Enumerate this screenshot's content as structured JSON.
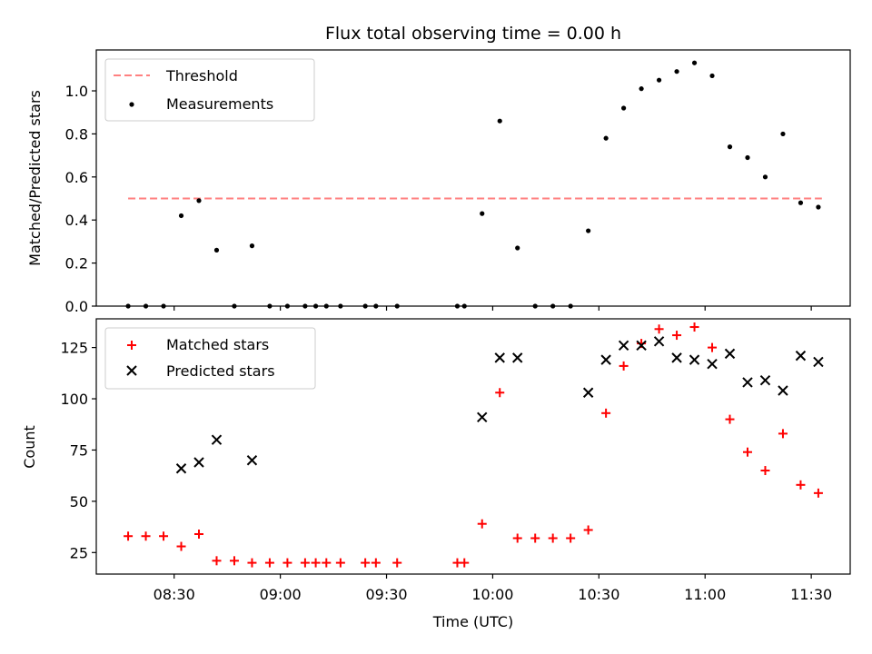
{
  "chart_data": [
    {
      "type": "scatter",
      "title": "Flux total observing time = 0.00 h",
      "xlabel": "",
      "ylabel": "Matched/Predicted stars",
      "ylim": [
        0,
        1.19
      ],
      "yticks": [
        0.0,
        0.2,
        0.4,
        0.6,
        0.8,
        1.0
      ],
      "xlim": [
        "08:08",
        "11:41"
      ],
      "legend_position": "top-left",
      "threshold": {
        "name": "Threshold",
        "value": 0.5,
        "x_start": "08:17",
        "x_end": "11:33",
        "color": "#ff8080"
      },
      "series": [
        {
          "name": "Measurements",
          "color": "#000000",
          "marker": "dot",
          "x": [
            "08:17",
            "08:22",
            "08:27",
            "08:32",
            "08:37",
            "08:42",
            "08:47",
            "08:52",
            "08:57",
            "09:02",
            "09:07",
            "09:10",
            "09:13",
            "09:17",
            "09:24",
            "09:27",
            "09:33",
            "09:50",
            "09:52",
            "09:57",
            "10:02",
            "10:07",
            "10:12",
            "10:17",
            "10:22",
            "10:27",
            "10:32",
            "10:37",
            "10:42",
            "10:47",
            "10:52",
            "10:57",
            "11:02",
            "11:07",
            "11:12",
            "11:17",
            "11:22",
            "11:27",
            "11:32"
          ],
          "y": [
            0.0,
            0.0,
            0.0,
            0.42,
            0.49,
            0.26,
            0.0,
            0.28,
            0.0,
            0.0,
            0.0,
            0.0,
            0.0,
            0.0,
            0.0,
            0.0,
            0.0,
            0.0,
            0.0,
            0.43,
            0.86,
            0.27,
            0.0,
            0.0,
            0.0,
            0.35,
            0.78,
            0.92,
            1.01,
            1.05,
            1.09,
            1.13,
            1.07,
            0.74,
            0.69,
            0.6,
            0.8,
            0.48,
            0.46
          ]
        }
      ]
    },
    {
      "type": "scatter",
      "title": "",
      "xlabel": "Time (UTC)",
      "ylabel": "Count",
      "ylim": [
        14.5,
        139
      ],
      "yticks": [
        25,
        50,
        75,
        100,
        125
      ],
      "xlim": [
        "08:08",
        "11:41"
      ],
      "xticks": [
        "08:30",
        "09:00",
        "09:30",
        "10:00",
        "10:30",
        "11:00",
        "11:30"
      ],
      "legend_position": "top-left",
      "series": [
        {
          "name": "Matched stars",
          "color": "#ff0000",
          "marker": "plus",
          "x": [
            "08:17",
            "08:22",
            "08:27",
            "08:32",
            "08:37",
            "08:42",
            "08:47",
            "08:52",
            "08:57",
            "09:02",
            "09:07",
            "09:10",
            "09:13",
            "09:17",
            "09:24",
            "09:27",
            "09:33",
            "09:50",
            "09:52",
            "09:57",
            "10:02",
            "10:07",
            "10:12",
            "10:17",
            "10:22",
            "10:27",
            "10:32",
            "10:37",
            "10:42",
            "10:47",
            "10:52",
            "10:57",
            "11:02",
            "11:07",
            "11:12",
            "11:17",
            "11:22",
            "11:27",
            "11:32"
          ],
          "y": [
            33,
            33,
            33,
            28,
            34,
            21,
            21,
            20,
            20,
            20,
            20,
            20,
            20,
            20,
            20,
            20,
            20,
            20,
            20,
            39,
            103,
            32,
            32,
            32,
            32,
            36,
            93,
            116,
            127,
            134,
            131,
            135,
            125,
            90,
            74,
            65,
            83,
            58,
            54
          ]
        },
        {
          "name": "Predicted stars",
          "color": "#000000",
          "marker": "x",
          "x": [
            "08:32",
            "08:37",
            "08:42",
            "08:52",
            "09:57",
            "10:02",
            "10:07",
            "10:27",
            "10:32",
            "10:37",
            "10:42",
            "10:47",
            "10:52",
            "10:57",
            "11:02",
            "11:07",
            "11:12",
            "11:17",
            "11:22",
            "11:27",
            "11:32"
          ],
          "y": [
            66,
            69,
            80,
            70,
            91,
            120,
            120,
            103,
            119,
            126,
            126,
            128,
            120,
            119,
            117,
            122,
            108,
            109,
            104,
            121,
            118
          ]
        }
      ]
    }
  ]
}
